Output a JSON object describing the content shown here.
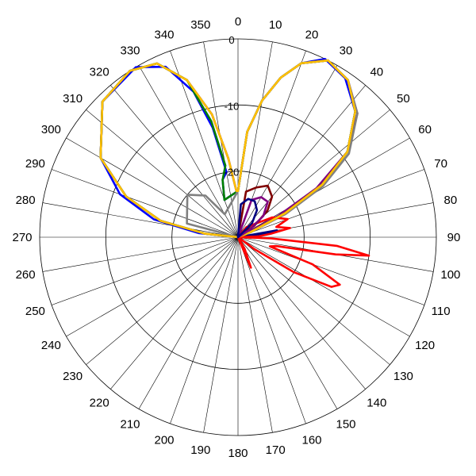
{
  "chart_data": {
    "type": "polar-line",
    "title": "",
    "angle_ticks": [
      "0",
      "10",
      "20",
      "30",
      "40",
      "50",
      "60",
      "70",
      "80",
      "90",
      "100",
      "110",
      "120",
      "130",
      "140",
      "150",
      "160",
      "170",
      "180",
      "190",
      "200",
      "210",
      "220",
      "230",
      "240",
      "250",
      "260",
      "270",
      "280",
      "290",
      "300",
      "310",
      "320",
      "330",
      "340",
      "350"
    ],
    "angle_direction": "clockwise",
    "angle_zero": "top",
    "radial_ticks": [
      "0",
      "-10",
      "-20"
    ],
    "radial_axis": {
      "min": -30,
      "max": 0,
      "rings": [
        0,
        -10,
        -20,
        -30
      ]
    },
    "grid": true,
    "legend": "none",
    "series": [
      {
        "color": "#000080",
        "points": [
          [
            0,
            -23
          ],
          [
            5,
            -14
          ],
          [
            10,
            -9
          ],
          [
            15,
            -5
          ],
          [
            20,
            -2
          ],
          [
            27,
            0
          ],
          [
            35,
            -1
          ],
          [
            43,
            -4
          ],
          [
            52,
            -9
          ],
          [
            58,
            -15
          ],
          [
            63,
            -22
          ],
          [
            68,
            -28
          ],
          [
            72,
            -30
          ],
          [
            80,
            -24
          ],
          [
            86,
            -27
          ],
          [
            90,
            -30
          ],
          [
            270,
            -30
          ],
          [
            276,
            -25
          ],
          [
            282,
            -18
          ],
          [
            290,
            -12
          ],
          [
            300,
            -6
          ],
          [
            315,
            -1
          ],
          [
            327,
            0
          ],
          [
            335,
            -1
          ],
          [
            342,
            -5
          ],
          [
            348,
            -11
          ],
          [
            353,
            -18
          ],
          [
            358,
            -23
          ],
          [
            0,
            -23
          ]
        ]
      },
      {
        "color": "#0000ff",
        "points": [
          [
            0,
            -23
          ],
          [
            5,
            -14
          ],
          [
            10,
            -9
          ],
          [
            15,
            -5
          ],
          [
            20,
            -2
          ],
          [
            26,
            0
          ],
          [
            34,
            -1
          ],
          [
            43,
            -4
          ],
          [
            52,
            -9
          ],
          [
            58,
            -15
          ],
          [
            63,
            -22
          ],
          [
            68,
            -28
          ],
          [
            72,
            -30
          ],
          [
            90,
            -30
          ],
          [
            270,
            -30
          ],
          [
            276,
            -24
          ],
          [
            282,
            -17
          ],
          [
            290,
            -11
          ],
          [
            300,
            -6
          ],
          [
            315,
            -1
          ],
          [
            329,
            0
          ],
          [
            337,
            -2
          ],
          [
            343,
            -7
          ],
          [
            347,
            -13
          ],
          [
            350,
            -20
          ],
          [
            345,
            -21
          ],
          [
            340,
            -24
          ],
          [
            0,
            -23
          ]
        ]
      },
      {
        "color": "#800080",
        "points": [
          [
            0,
            -23
          ],
          [
            5,
            -14
          ],
          [
            10,
            -9
          ],
          [
            15,
            -5
          ],
          [
            20,
            -2
          ],
          [
            27,
            0
          ],
          [
            35,
            -1
          ],
          [
            44,
            -4
          ],
          [
            52,
            -9
          ],
          [
            58,
            -16
          ],
          [
            62,
            -23
          ],
          [
            67,
            -29
          ],
          [
            72,
            -30
          ],
          [
            90,
            -30
          ],
          [
            270,
            -30
          ],
          [
            276,
            -25
          ],
          [
            282,
            -18
          ],
          [
            290,
            -12
          ],
          [
            300,
            -6
          ],
          [
            315,
            -1
          ],
          [
            327,
            0
          ],
          [
            335,
            -1
          ],
          [
            342,
            -5
          ],
          [
            348,
            -11
          ],
          [
            353,
            -18
          ],
          [
            358,
            -23
          ],
          [
            0,
            -23
          ]
        ]
      },
      {
        "color": "#008000",
        "points": [
          [
            0,
            -23
          ],
          [
            5,
            -14
          ],
          [
            10,
            -9
          ],
          [
            15,
            -5
          ],
          [
            20,
            -2
          ],
          [
            27,
            0
          ],
          [
            35,
            -1
          ],
          [
            43,
            -4
          ],
          [
            52,
            -9
          ],
          [
            58,
            -15
          ],
          [
            63,
            -22
          ],
          [
            68,
            -28
          ],
          [
            72,
            -30
          ],
          [
            90,
            -30
          ],
          [
            270,
            -30
          ],
          [
            276,
            -25
          ],
          [
            282,
            -18
          ],
          [
            290,
            -12
          ],
          [
            300,
            -6
          ],
          [
            315,
            -1
          ],
          [
            327,
            0
          ],
          [
            335,
            -1
          ],
          [
            342,
            -5
          ],
          [
            347,
            -12
          ],
          [
            350,
            -19
          ],
          [
            345,
            -21
          ],
          [
            340,
            -24
          ],
          [
            0,
            -23
          ]
        ]
      },
      {
        "color": "#808080",
        "points": [
          [
            0,
            -23
          ],
          [
            5,
            -14
          ],
          [
            10,
            -9
          ],
          [
            15,
            -5
          ],
          [
            20,
            -2
          ],
          [
            27,
            0
          ],
          [
            35,
            -1
          ],
          [
            44,
            -4
          ],
          [
            53,
            -9
          ],
          [
            59,
            -15
          ],
          [
            64,
            -22
          ],
          [
            68,
            -28
          ],
          [
            72,
            -30
          ],
          [
            90,
            -30
          ],
          [
            270,
            -30
          ],
          [
            285,
            -22
          ],
          [
            310,
            -20
          ],
          [
            322,
            -22
          ],
          [
            330,
            -26
          ],
          [
            0,
            -23
          ]
        ]
      },
      {
        "color": "#ff0000",
        "points": [
          [
            0,
            -30
          ],
          [
            40,
            -28
          ],
          [
            60,
            -24
          ],
          [
            70,
            -22
          ],
          [
            75,
            -24
          ],
          [
            80,
            -22
          ],
          [
            84,
            -25
          ],
          [
            88,
            -27
          ],
          [
            90,
            -30
          ],
          [
            92,
            -25
          ],
          [
            95,
            -15
          ],
          [
            98,
            -10
          ],
          [
            100,
            -15
          ],
          [
            103,
            -24
          ],
          [
            106,
            -25
          ],
          [
            110,
            -18
          ],
          [
            115,
            -13
          ],
          [
            118,
            -14
          ],
          [
            122,
            -20
          ],
          [
            126,
            -27
          ],
          [
            130,
            -30
          ],
          [
            150,
            -28
          ],
          [
            157,
            -25
          ],
          [
            165,
            -30
          ],
          [
            180,
            -30
          ]
        ]
      },
      {
        "color": "#ffc000",
        "points": [
          [
            0,
            -23
          ],
          [
            5,
            -14
          ],
          [
            10,
            -9
          ],
          [
            15,
            -5
          ],
          [
            20,
            -2
          ],
          [
            27,
            0
          ],
          [
            35,
            -1
          ],
          [
            43,
            -4
          ],
          [
            52,
            -9
          ],
          [
            58,
            -15
          ],
          [
            63,
            -22
          ],
          [
            68,
            -28
          ],
          [
            72,
            -30
          ],
          [
            90,
            -30
          ],
          [
            270,
            -30
          ],
          [
            276,
            -25
          ],
          [
            282,
            -18
          ],
          [
            290,
            -12
          ],
          [
            300,
            -6
          ],
          [
            315,
            -1
          ],
          [
            327,
            0
          ],
          [
            335,
            -1
          ],
          [
            342,
            -5
          ],
          [
            348,
            -11
          ],
          [
            353,
            -18
          ],
          [
            358,
            -23
          ],
          [
            0,
            -23
          ]
        ]
      },
      {
        "color": "#800000",
        "points": [
          [
            10,
            -23
          ],
          [
            20,
            -22
          ],
          [
            30,
            -21
          ],
          [
            40,
            -22
          ],
          [
            48,
            -24
          ],
          [
            55,
            -27
          ],
          [
            60,
            -30
          ],
          [
            30,
            -30
          ],
          [
            10,
            -23
          ]
        ]
      },
      {
        "color": "#800080",
        "points": [
          [
            20,
            -24
          ],
          [
            30,
            -23
          ],
          [
            40,
            -23
          ],
          [
            50,
            -25
          ],
          [
            58,
            -28
          ],
          [
            60,
            -30
          ],
          [
            25,
            -30
          ],
          [
            20,
            -24
          ]
        ]
      },
      {
        "color": "#000080",
        "points": [
          [
            5,
            -25
          ],
          [
            15,
            -24
          ],
          [
            25,
            -24
          ],
          [
            35,
            -25
          ],
          [
            45,
            -27
          ],
          [
            50,
            -30
          ],
          [
            10,
            -30
          ],
          [
            5,
            -25
          ]
        ]
      }
    ]
  }
}
